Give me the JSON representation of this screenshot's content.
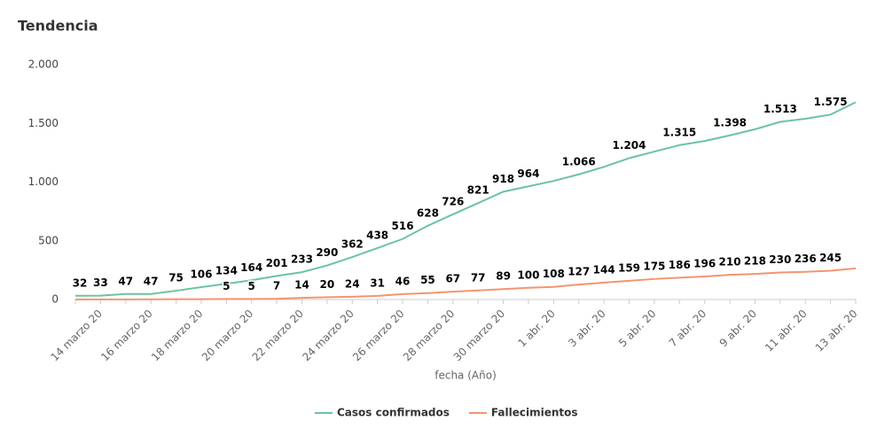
{
  "chart_data": {
    "type": "line",
    "title": "Tendencia",
    "x_label": "fecha (Año)",
    "categories": [
      null,
      "14 marzo 20",
      null,
      "16 marzo 20",
      null,
      "18 marzo 20",
      null,
      "20 marzo 20",
      null,
      "22 marzo 20",
      null,
      "24 marzo 20",
      null,
      "26 marzo 20",
      null,
      "28 marzo 20",
      null,
      "30 marzo 20",
      null,
      "1 abr. 20",
      null,
      "3 abr. 20",
      null,
      "5 abr. 20",
      null,
      "7 abr. 20",
      null,
      "9 abr. 20",
      null,
      "11 abr. 20",
      null,
      "13 abr. 20"
    ],
    "series": [
      {
        "name": "Casos confirmados",
        "color": "#6cc3a0",
        "values": [
          32,
          33,
          47,
          47,
          75,
          106,
          134,
          164,
          201,
          233,
          290,
          362,
          438,
          516,
          628,
          726,
          821,
          918,
          964,
          1010,
          1066,
          1130,
          1204,
          1260,
          1315,
          1350,
          1398,
          1450,
          1513,
          1540,
          1575,
          1680
        ],
        "value_labels": [
          "32",
          "33",
          "47",
          "47",
          "75",
          "106",
          "134",
          "164",
          "201",
          "233",
          "290",
          "362",
          "438",
          "516",
          "628",
          "726",
          "821",
          "918",
          "964",
          null,
          "1.066",
          null,
          "1.204",
          null,
          "1.315",
          null,
          "1.398",
          null,
          "1.513",
          null,
          "1.575",
          null
        ]
      },
      {
        "name": "Fallecimientos",
        "color": "#f4956f",
        "values": [
          1,
          1,
          1,
          2,
          3,
          3,
          5,
          5,
          7,
          14,
          20,
          24,
          31,
          46,
          55,
          67,
          77,
          89,
          100,
          108,
          127,
          144,
          159,
          175,
          186,
          196,
          210,
          218,
          230,
          236,
          245,
          265
        ],
        "value_labels": [
          null,
          null,
          null,
          null,
          null,
          null,
          "5",
          "5",
          "7",
          "14",
          "20",
          "24",
          "31",
          "46",
          "55",
          "67",
          "77",
          "89",
          "100",
          "108",
          "127",
          "144",
          "159",
          "175",
          "186",
          "196",
          "210",
          "218",
          "230",
          "236",
          "245",
          null
        ]
      }
    ],
    "ylim": [
      0,
      2000
    ],
    "yticks": [
      0,
      500,
      {
        "value": 1000,
        "label": "1.000"
      },
      {
        "value": 1500,
        "label": "1.500"
      },
      {
        "value": 2000,
        "label": "2.000"
      }
    ],
    "grid": false,
    "legend": "bottom"
  }
}
